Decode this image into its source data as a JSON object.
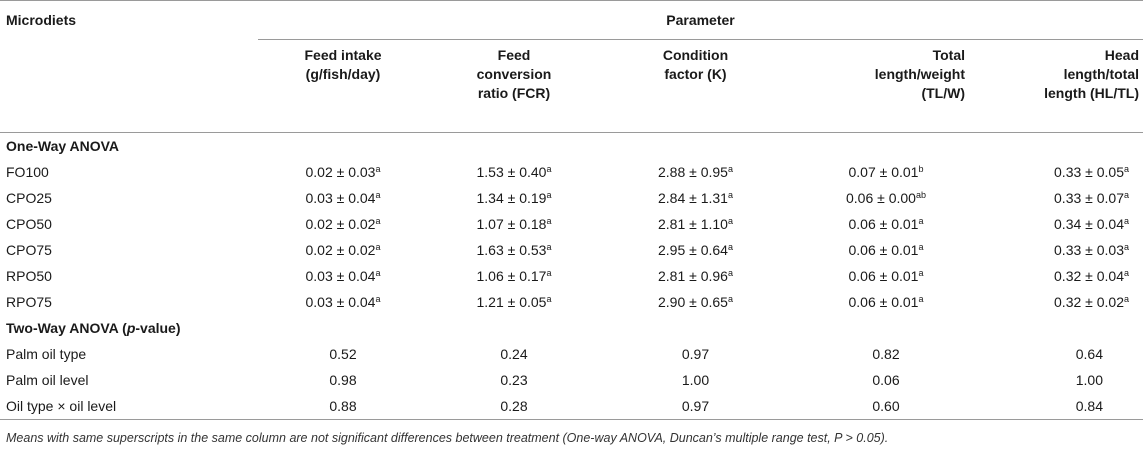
{
  "header": {
    "microdiets_label": "Microdiets",
    "parameter_label": "Parameter",
    "columns": [
      [
        "Feed intake",
        "(g/fish/day)"
      ],
      [
        "Feed",
        "conversion",
        "ratio (FCR)"
      ],
      [
        "Condition",
        "factor (K)"
      ],
      [
        "Total",
        "length/weight",
        "(TL/W)"
      ],
      [
        "Head",
        "length/total",
        "length (HL/TL)"
      ]
    ]
  },
  "one_way": {
    "title": "One-Way ANOVA",
    "rows": [
      {
        "label": "FO100",
        "cells": [
          [
            "0.02 ± 0.03",
            "a"
          ],
          [
            "1.53 ± 0.40",
            "a"
          ],
          [
            "2.88 ± 0.95",
            "a"
          ],
          [
            "0.07 ± 0.01",
            "b"
          ],
          [
            "0.33 ± 0.05",
            "a"
          ]
        ]
      },
      {
        "label": "CPO25",
        "cells": [
          [
            "0.03 ± 0.04",
            "a"
          ],
          [
            "1.34 ± 0.19",
            "a"
          ],
          [
            "2.84 ± 1.31",
            "a"
          ],
          [
            "0.06 ± 0.00",
            "ab"
          ],
          [
            "0.33 ± 0.07",
            "a"
          ]
        ]
      },
      {
        "label": "CPO50",
        "cells": [
          [
            "0.02 ± 0.02",
            "a"
          ],
          [
            "1.07 ± 0.18",
            "a"
          ],
          [
            "2.81 ± 1.10",
            "a"
          ],
          [
            "0.06 ± 0.01",
            "a"
          ],
          [
            "0.34 ± 0.04",
            "a"
          ]
        ]
      },
      {
        "label": "CPO75",
        "cells": [
          [
            "0.02 ± 0.02",
            "a"
          ],
          [
            "1.63 ± 0.53",
            "a"
          ],
          [
            "2.95 ± 0.64",
            "a"
          ],
          [
            "0.06 ± 0.01",
            "a"
          ],
          [
            "0.33 ± 0.03",
            "a"
          ]
        ]
      },
      {
        "label": "RPO50",
        "cells": [
          [
            "0.03 ± 0.04",
            "a"
          ],
          [
            "1.06 ± 0.17",
            "a"
          ],
          [
            "2.81 ± 0.96",
            "a"
          ],
          [
            "0.06 ± 0.01",
            "a"
          ],
          [
            "0.32 ± 0.04",
            "a"
          ]
        ]
      },
      {
        "label": "RPO75",
        "cells": [
          [
            "0.03 ± 0.04",
            "a"
          ],
          [
            "1.21 ± 0.05",
            "a"
          ],
          [
            "2.90 ± 0.65",
            "a"
          ],
          [
            "0.06 ± 0.01",
            "a"
          ],
          [
            "0.32 ± 0.02",
            "a"
          ]
        ]
      }
    ]
  },
  "two_way": {
    "title_prefix": "Two-Way ANOVA (",
    "title_italic": "p",
    "title_suffix": "-value)",
    "rows": [
      {
        "label": "Palm oil type",
        "cells": [
          "0.52",
          "0.24",
          "0.97",
          "0.82",
          "0.64"
        ]
      },
      {
        "label": "Palm oil level",
        "cells": [
          "0.98",
          "0.23",
          "1.00",
          "0.06",
          "1.00"
        ]
      },
      {
        "label": "Oil type × oil level",
        "cells": [
          "0.88",
          "0.28",
          "0.97",
          "0.60",
          "0.84"
        ]
      }
    ]
  },
  "footnote": "Means with same superscripts in the same column are not significant differences between treatment (One-way ANOVA, Duncan’s multiple range test, P > 0.05)."
}
